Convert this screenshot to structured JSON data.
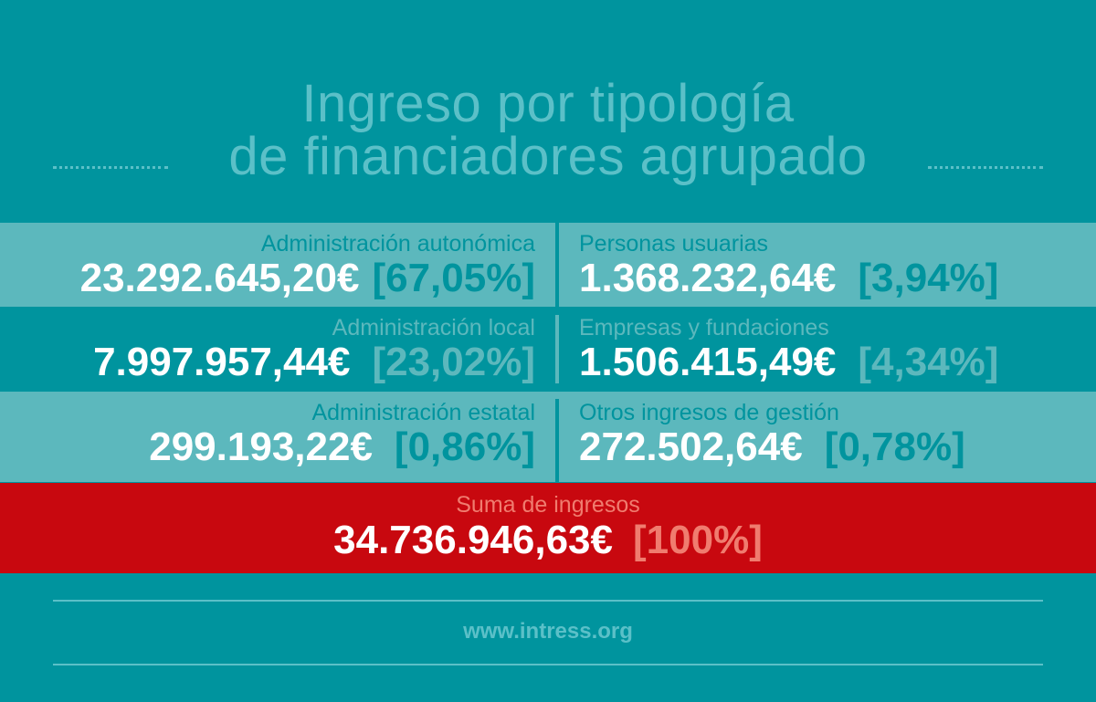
{
  "title": {
    "line1": "Ingreso por tipología",
    "line2": "de financiadores agrupado"
  },
  "items": [
    {
      "label": "Administración autonómica",
      "amount": "23.292.645,20€",
      "percent": "[67,05%]"
    },
    {
      "label": "Personas usuarias",
      "amount": "1.368.232,64€",
      "percent": "[3,94%]"
    },
    {
      "label": "Administración local",
      "amount": "7.997.957,44€",
      "percent": "[23,02%]"
    },
    {
      "label": "Empresas y fundaciones",
      "amount": "1.506.415,49€",
      "percent": "[4,34%]"
    },
    {
      "label": "Administración estatal",
      "amount": "299.193,22€",
      "percent": "[0,86%]"
    },
    {
      "label": "Otros ingresos de gestión",
      "amount": "272.502,64€",
      "percent": "[0,78%]"
    }
  ],
  "total": {
    "label": "Suma de ingresos",
    "amount": "34.736.946,63€",
    "percent": "[100%]"
  },
  "footer": {
    "url": "www.intress.org"
  },
  "colors": {
    "background": "#00949e",
    "band_light": "#5cb8bd",
    "total_band": "#c8080f",
    "total_accent": "#f07c6f"
  }
}
